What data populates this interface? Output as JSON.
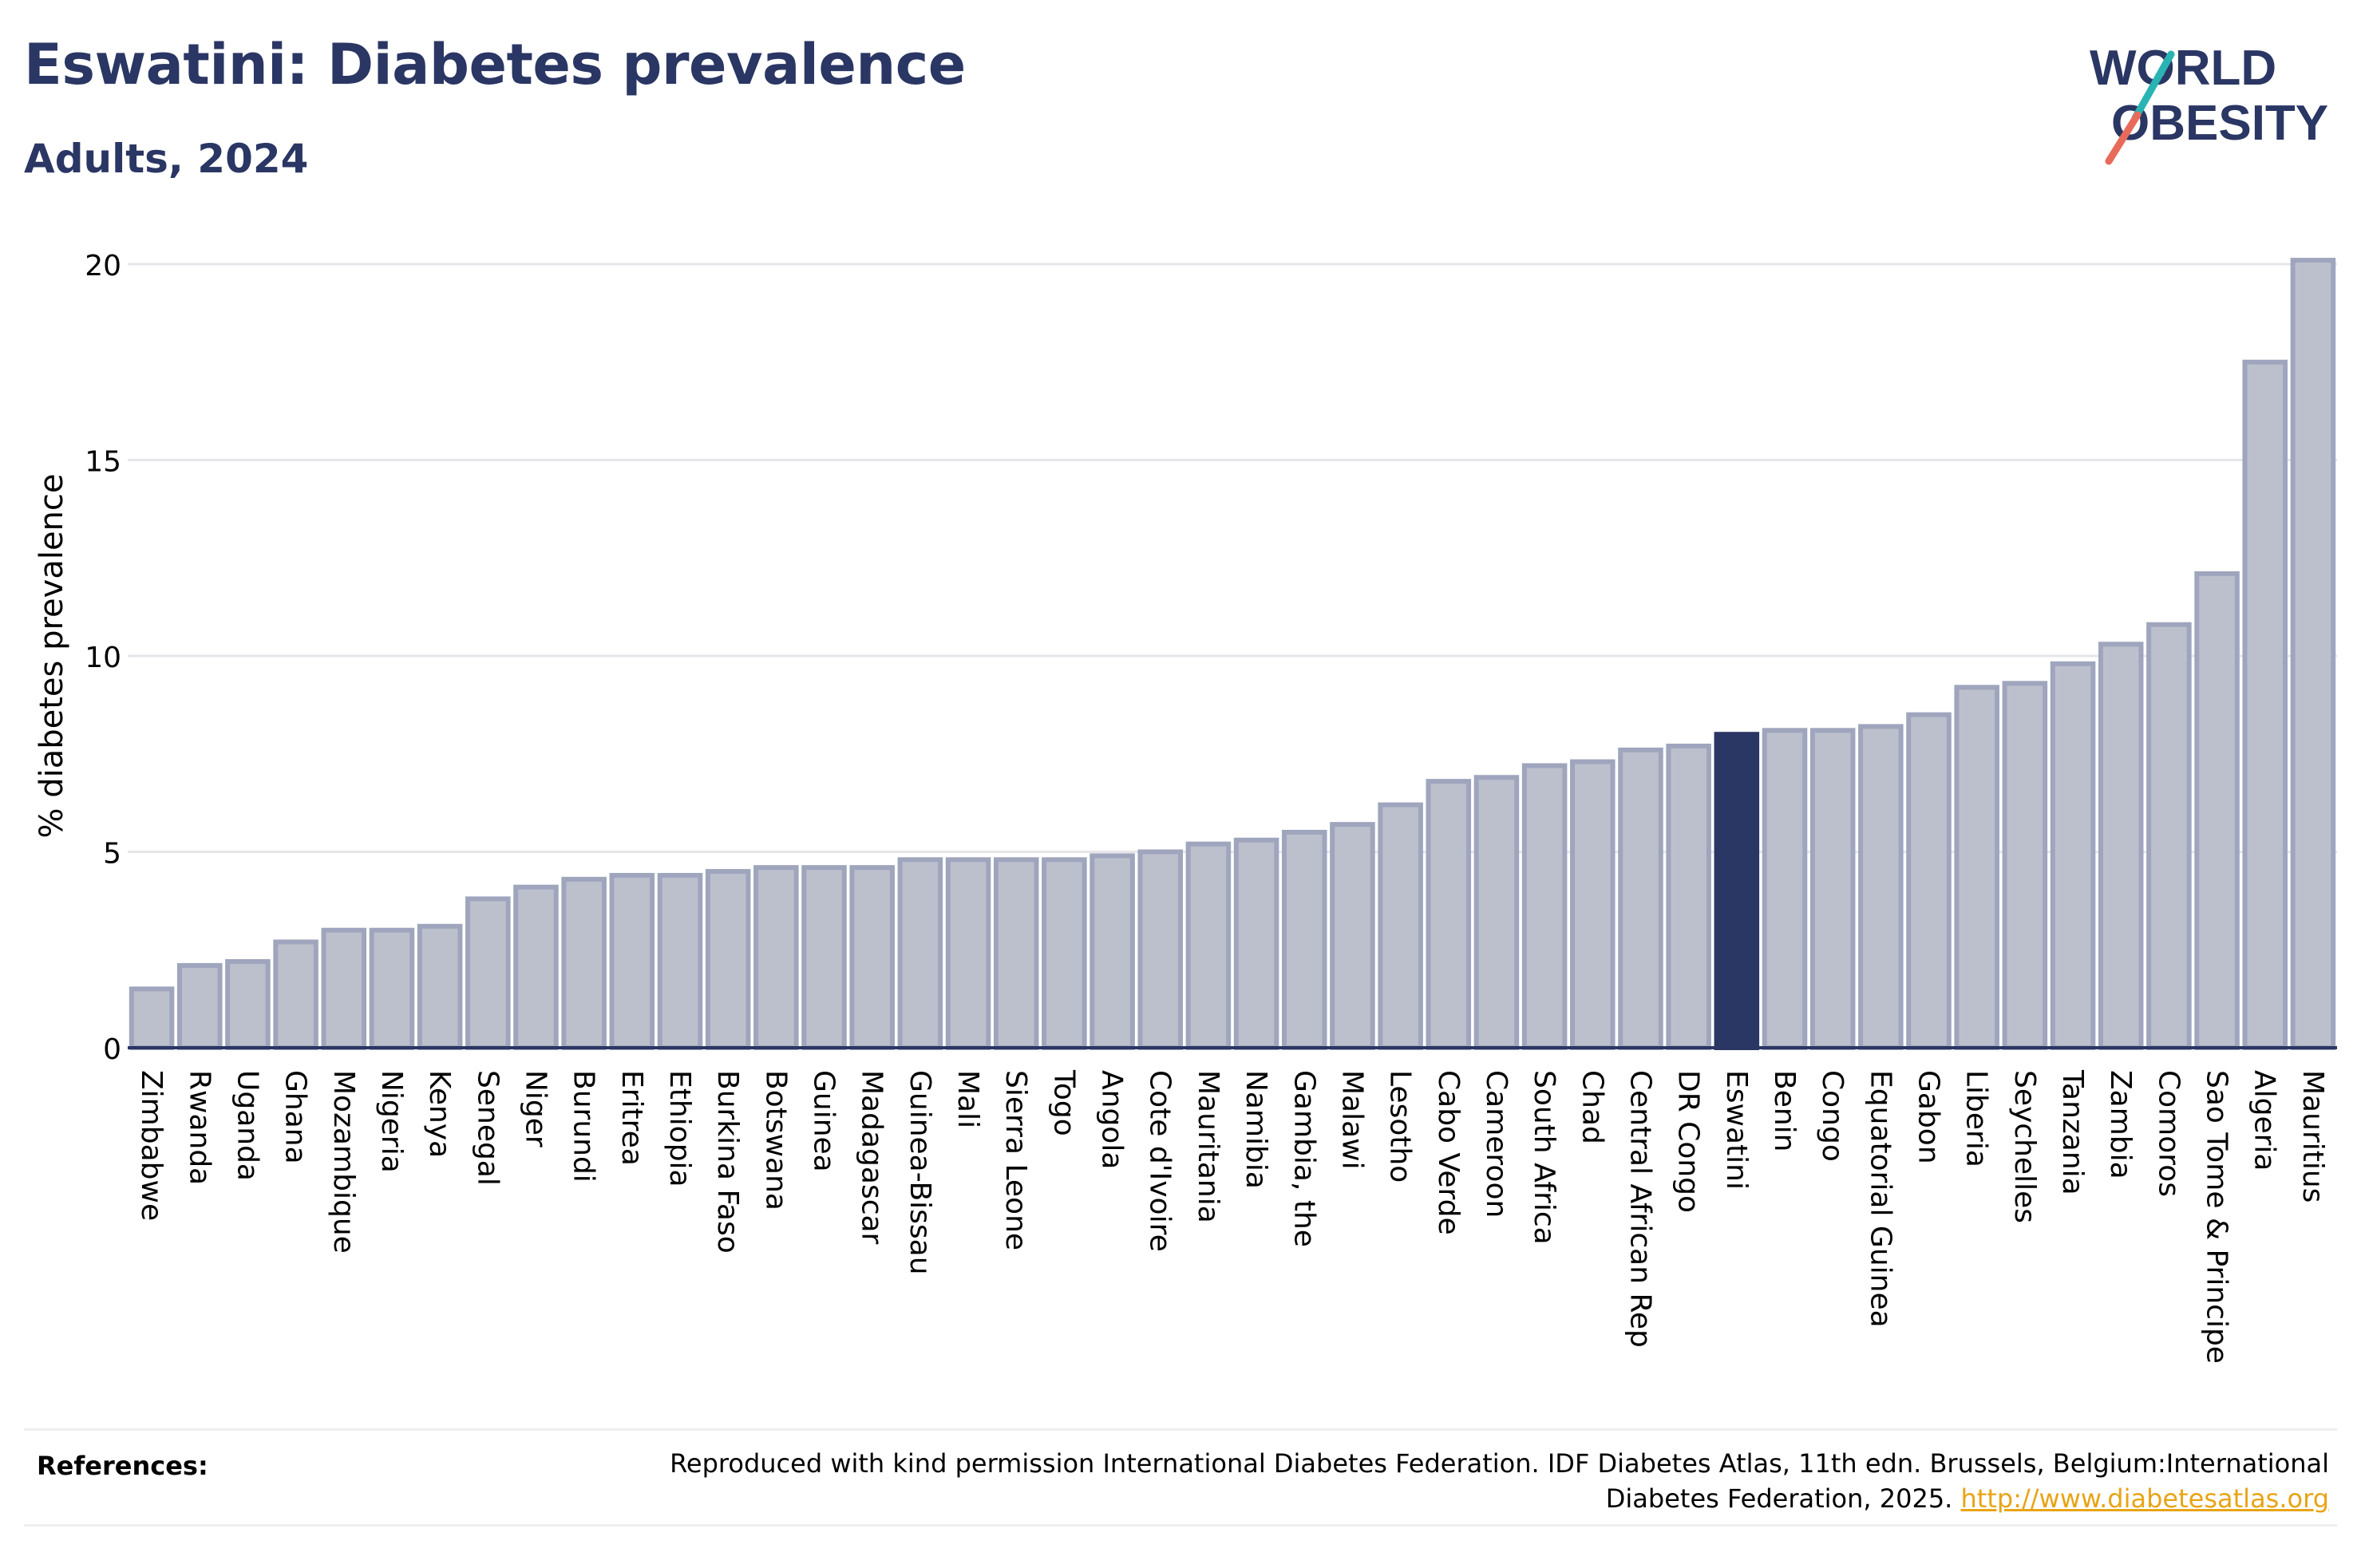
{
  "header": {
    "title": "Eswatini: Diabetes prevalence",
    "subtitle": "Adults, 2024"
  },
  "logo": {
    "line1": "WORLD",
    "line2": "OBESITY",
    "colors": {
      "text": "#2a3663",
      "slash_top": "#2ab3b3",
      "slash_bottom": "#e86a5a"
    }
  },
  "chart_data": {
    "type": "bar",
    "ylabel": "% diabetes prevalence",
    "xlabel": "",
    "ylim": [
      0,
      21
    ],
    "yticks": [
      0,
      5,
      10,
      15,
      20
    ],
    "grid": true,
    "highlight": "Eswatini",
    "colors": {
      "bar": "#bcc0cd",
      "bar_edge": "#9fa5bd",
      "highlight": "#2a3663",
      "grid": "#e6e6ea",
      "axis": "#2a3663"
    },
    "categories": [
      "Zimbabwe",
      "Rwanda",
      "Uganda",
      "Ghana",
      "Mozambique",
      "Nigeria",
      "Kenya",
      "Senegal",
      "Niger",
      "Burundi",
      "Eritrea",
      "Ethiopia",
      "Burkina Faso",
      "Botswana",
      "Guinea",
      "Madagascar",
      "Guinea-Bissau",
      "Mali",
      "Sierra Leone",
      "Togo",
      "Angola",
      "Cote d'Ivoire",
      "Mauritania",
      "Namibia",
      "Gambia, the",
      "Malawi",
      "Lesotho",
      "Cabo Verde",
      "Cameroon",
      "South Africa",
      "Chad",
      "Central African Rep",
      "DR Congo",
      "Eswatini",
      "Benin",
      "Congo",
      "Equatorial Guinea",
      "Gabon",
      "Liberia",
      "Seychelles",
      "Tanzania",
      "Zambia",
      "Comoros",
      "Sao Tome & Principe",
      "Algeria",
      "Mauritius"
    ],
    "values": [
      1.5,
      2.1,
      2.2,
      2.7,
      3.0,
      3.0,
      3.1,
      3.8,
      4.1,
      4.3,
      4.4,
      4.4,
      4.5,
      4.6,
      4.6,
      4.6,
      4.8,
      4.8,
      4.8,
      4.8,
      4.9,
      5.0,
      5.2,
      5.3,
      5.5,
      5.7,
      6.2,
      6.8,
      6.9,
      7.2,
      7.3,
      7.6,
      7.7,
      8.0,
      8.1,
      8.1,
      8.2,
      8.5,
      9.2,
      9.3,
      9.8,
      10.3,
      10.8,
      12.1,
      17.5,
      20.1
    ]
  },
  "references": {
    "label": "References:",
    "text": "Reproduced with kind permission International Diabetes Federation. IDF Diabetes Atlas, 11th edn. Brussels, Belgium:International Diabetes Federation, 2025.",
    "link": "http://www.diabetesatlas.org"
  }
}
